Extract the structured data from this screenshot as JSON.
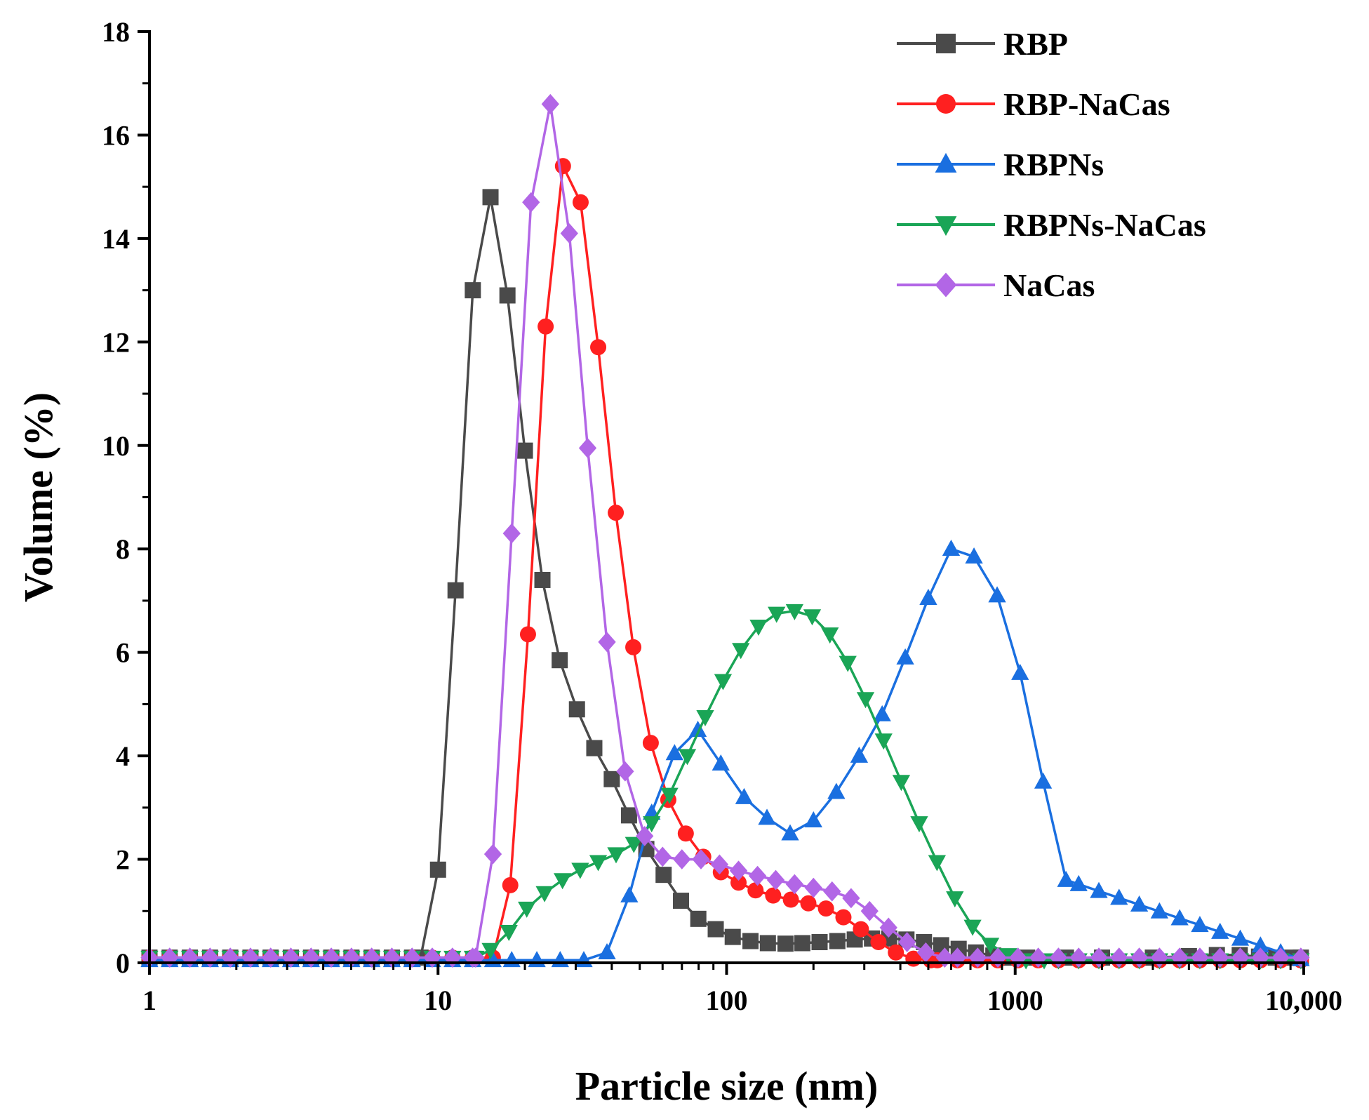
{
  "chart_data": {
    "type": "line",
    "xscale": "log",
    "xlabel": "Particle size (nm)",
    "ylabel": "Volume (%)",
    "xlim": [
      1,
      10000
    ],
    "ylim": [
      0,
      18
    ],
    "x_ticks": [
      1,
      10,
      100,
      1000,
      10000
    ],
    "x_tick_labels": [
      "1",
      "10",
      "100",
      "1000",
      "10,000"
    ],
    "y_ticks": [
      0,
      2,
      4,
      6,
      8,
      10,
      12,
      14,
      16,
      18
    ],
    "y_tick_labels": [
      "0",
      "2",
      "4",
      "6",
      "8",
      "10",
      "12",
      "14",
      "16",
      "18"
    ],
    "legend_position": "top-right",
    "series": [
      {
        "name": "RBP",
        "color": "#4a4a4a",
        "marker": "square",
        "x": [
          1,
          8.7,
          10.0,
          11.5,
          13.2,
          15.2,
          17.4,
          20.0,
          23.0,
          26.4,
          30.3,
          34.8,
          40.0,
          45.9,
          52.7,
          60.5,
          69.5,
          79.8,
          91.7,
          105,
          121,
          139,
          160,
          183,
          210,
          242,
          278,
          319,
          366,
          420,
          483,
          554,
          637,
          731,
          840,
          964,
          1100,
          1500,
          2000,
          3000,
          4000,
          5000,
          6000,
          7000,
          8000,
          9000,
          10000
        ],
        "y": [
          0.1,
          0.1,
          1.8,
          7.2,
          13.0,
          14.8,
          12.9,
          9.9,
          7.4,
          5.85,
          4.9,
          4.15,
          3.55,
          2.85,
          2.2,
          1.7,
          1.2,
          0.85,
          0.65,
          0.5,
          0.42,
          0.38,
          0.37,
          0.38,
          0.4,
          0.42,
          0.45,
          0.47,
          0.47,
          0.45,
          0.4,
          0.34,
          0.27,
          0.2,
          0.14,
          0.1,
          0.1,
          0.1,
          0.1,
          0.1,
          0.13,
          0.15,
          0.15,
          0.12,
          0.1,
          0.1,
          0.1
        ]
      },
      {
        "name": "RBP-NaCas",
        "color": "#ff2020",
        "marker": "circle",
        "x": [
          1,
          15.5,
          17.8,
          20.5,
          23.6,
          27.1,
          31.2,
          35.9,
          41.3,
          47.5,
          54.6,
          62.8,
          72.2,
          83.0,
          95.5,
          110,
          126,
          145,
          167,
          192,
          221,
          254,
          292,
          336,
          386,
          444,
          510,
          10000
        ],
        "y": [
          0.1,
          0.1,
          1.5,
          6.35,
          12.3,
          15.4,
          14.7,
          11.9,
          8.7,
          6.1,
          4.25,
          3.15,
          2.5,
          2.05,
          1.75,
          1.55,
          1.4,
          1.3,
          1.22,
          1.15,
          1.05,
          0.88,
          0.65,
          0.4,
          0.2,
          0.08,
          0.05,
          0.05
        ]
      },
      {
        "name": "RBPNs",
        "color": "#1a6fe0",
        "marker": "triangle-up",
        "x": [
          1,
          18.0,
          22.0,
          26.5,
          32.0,
          38.5,
          46.0,
          55.0,
          66.0,
          79.5,
          95.5,
          115,
          138,
          166,
          200,
          240,
          288,
          346,
          416,
          500,
          600,
          720,
          866,
          1040,
          1250,
          1500,
          10000
        ],
        "y": [
          0.05,
          0.05,
          0.05,
          0.05,
          0.05,
          0.2,
          1.3,
          2.9,
          4.05,
          4.5,
          3.85,
          3.2,
          2.8,
          2.5,
          2.75,
          3.3,
          4.0,
          4.8,
          5.9,
          7.05,
          8.0,
          7.85,
          7.1,
          5.6,
          3.5,
          1.6,
          0.05
        ]
      },
      {
        "name": "RBPNs-NaCas",
        "color": "#1aa556",
        "marker": "triangle-down",
        "x": [
          1,
          13.5,
          15.2,
          17.6,
          20.3,
          23.4,
          27.0,
          31.1,
          35.9,
          41.4,
          47.7,
          55.0,
          63.4,
          73.1,
          84.3,
          97.2,
          112,
          129,
          149,
          172,
          198,
          228,
          263,
          303,
          350,
          403,
          465,
          536,
          618,
          712,
          821,
          947,
          1090,
          1260,
          10000
        ],
        "y": [
          0.1,
          0.1,
          0.25,
          0.6,
          1.05,
          1.35,
          1.6,
          1.8,
          1.95,
          2.1,
          2.3,
          2.7,
          3.25,
          4.0,
          4.75,
          5.45,
          6.05,
          6.5,
          6.75,
          6.8,
          6.7,
          6.35,
          5.8,
          5.1,
          4.3,
          3.5,
          2.7,
          1.95,
          1.25,
          0.7,
          0.35,
          0.15,
          0.05,
          0.05,
          0.05
        ]
      },
      {
        "name": "NaCas",
        "color": "#b266e6",
        "marker": "diamond",
        "x": [
          1,
          13.5,
          15.5,
          18.0,
          21.0,
          24.5,
          28.5,
          33.0,
          38.5,
          44.5,
          52.0,
          60.0,
          70.0,
          81.5,
          94.5,
          110,
          128,
          148,
          172,
          200,
          232,
          270,
          313,
          364,
          422,
          490,
          570,
          10000
        ],
        "y": [
          0.1,
          0.1,
          2.1,
          8.3,
          14.7,
          16.6,
          14.1,
          9.95,
          6.2,
          3.7,
          2.45,
          2.05,
          2.0,
          2.0,
          1.9,
          1.78,
          1.68,
          1.6,
          1.52,
          1.45,
          1.38,
          1.25,
          1.0,
          0.68,
          0.4,
          0.2,
          0.1,
          0.1
        ]
      }
    ]
  }
}
